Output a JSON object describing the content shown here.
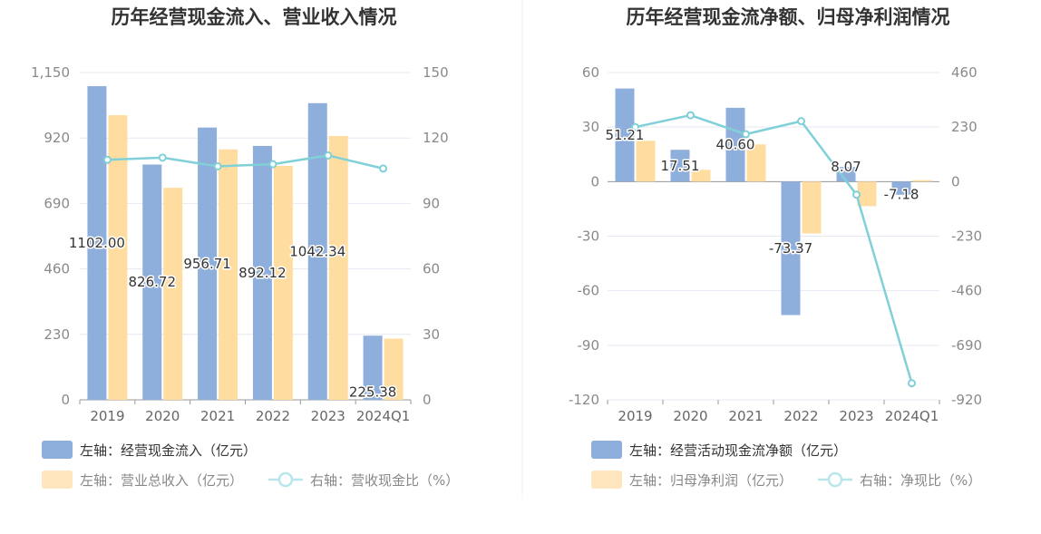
{
  "colors": {
    "bar_primary": "#8eaedb",
    "bar_secondary": "#ffdda0",
    "line": "#80d0d8",
    "grid": "#e6e9f2",
    "axis": "#999999",
    "legend_active_text": "#333333",
    "legend_inactive_text": "#888888"
  },
  "chart_data": [
    {
      "type": "bar",
      "title": "历年经营现金流入、营业收入情况",
      "categories": [
        "2019",
        "2020",
        "2021",
        "2022",
        "2023",
        "2024Q1"
      ],
      "left_axis": {
        "min": 0,
        "max": 1150,
        "ticks": [
          "0",
          "230",
          "460",
          "690",
          "920",
          "1,150"
        ]
      },
      "right_axis": {
        "min": 0,
        "max": 150,
        "ticks": [
          "0",
          "30",
          "60",
          "90",
          "120",
          "150"
        ]
      },
      "series": [
        {
          "name": "左轴：经营现金流入（亿元）",
          "kind": "bar",
          "axis": "left",
          "values": [
            1102.0,
            826.72,
            956.71,
            892.12,
            1042.34,
            225.38
          ],
          "labels": [
            "1102.00",
            "826.72",
            "956.71",
            "892.12",
            "1042.34",
            "225.38"
          ]
        },
        {
          "name": "左轴：营业总收入（亿元）",
          "kind": "bar",
          "axis": "left",
          "values": [
            1000,
            745,
            880,
            822,
            927,
            215
          ]
        },
        {
          "name": "右轴：营收现金比（%）",
          "kind": "line",
          "axis": "right",
          "values": [
            110,
            111,
            107,
            108,
            112,
            106
          ]
        }
      ],
      "grid": true,
      "legend_position": "bottom-left"
    },
    {
      "type": "bar",
      "title": "历年经营现金流净额、归母净利润情况",
      "categories": [
        "2019",
        "2020",
        "2021",
        "2022",
        "2023",
        "2024Q1"
      ],
      "left_axis": {
        "min": -120,
        "max": 60,
        "ticks": [
          "-120",
          "-90",
          "-60",
          "-30",
          "0",
          "30",
          "60"
        ]
      },
      "right_axis": {
        "min": -920,
        "max": 460,
        "ticks": [
          "-920",
          "-690",
          "-460",
          "-230",
          "0",
          "230",
          "460"
        ]
      },
      "series": [
        {
          "name": "左轴：经营活动现金流净额（亿元）",
          "kind": "bar",
          "axis": "left",
          "values": [
            51.21,
            17.51,
            40.6,
            -73.37,
            8.07,
            -7.18
          ],
          "labels": [
            "51.21",
            "17.51",
            "40.60",
            "-73.37",
            "8.07",
            "-7.18"
          ]
        },
        {
          "name": "左轴：归母净利润（亿元）",
          "kind": "bar",
          "axis": "left",
          "values": [
            22.5,
            6.5,
            20.5,
            -28.5,
            -13.5,
            0.8
          ]
        },
        {
          "name": "右轴：净现比（%）",
          "kind": "line",
          "axis": "right",
          "values": [
            230,
            280,
            200,
            255,
            -55,
            -850
          ]
        }
      ],
      "grid": true,
      "legend_position": "bottom-left"
    }
  ]
}
